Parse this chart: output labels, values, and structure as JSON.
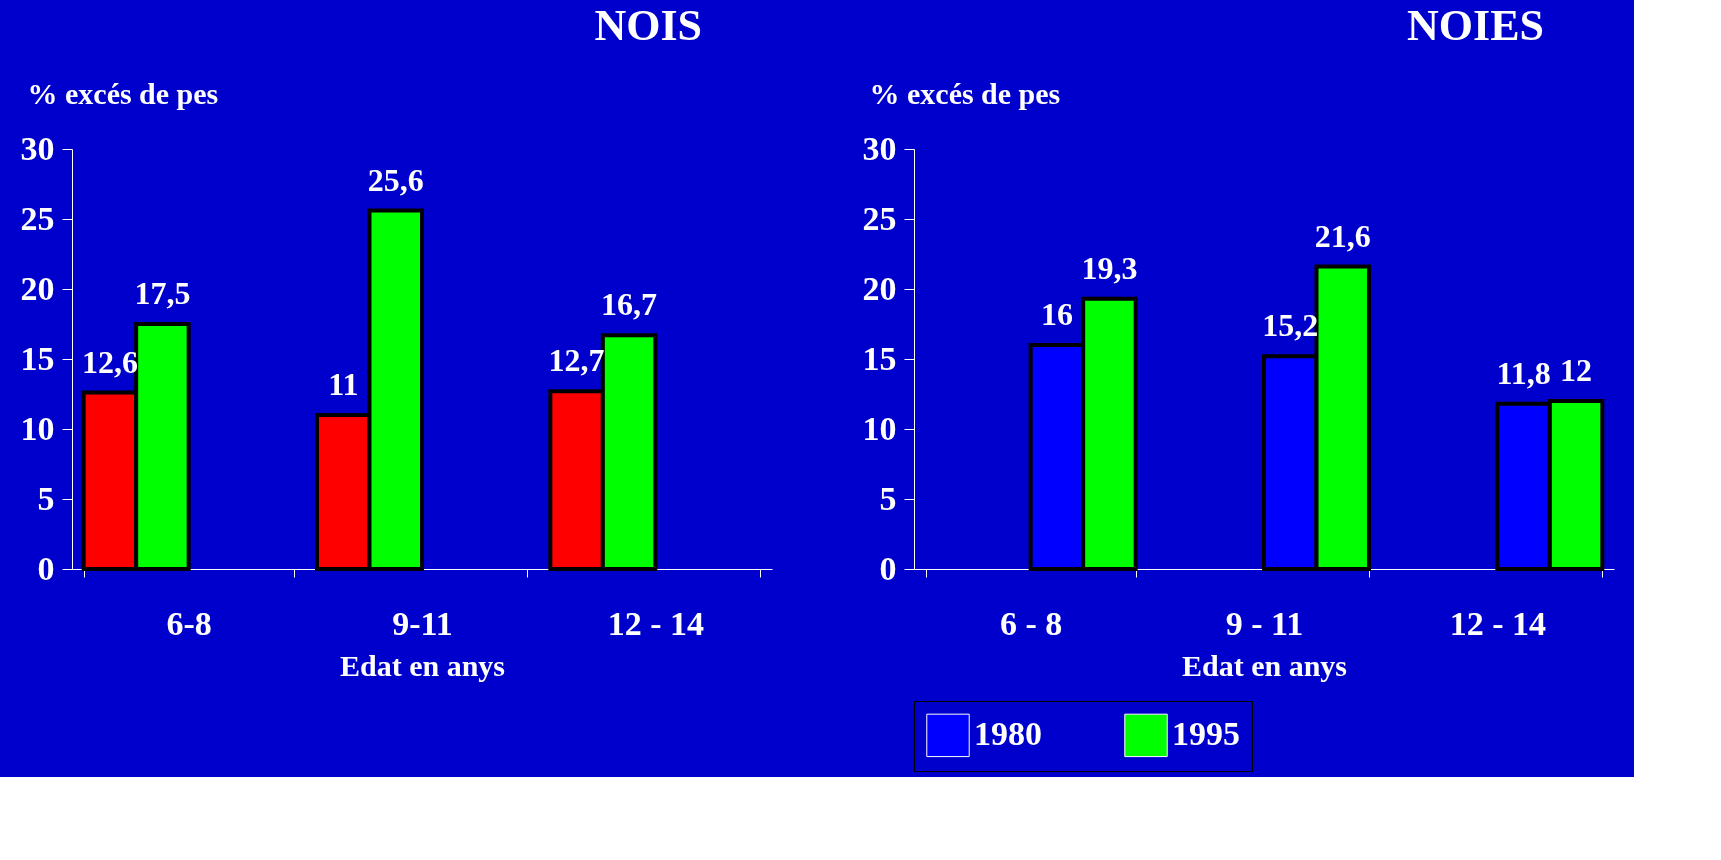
{
  "chart_data": [
    {
      "type": "bar",
      "title": "NOIS",
      "xlabel": "Edat en anys",
      "ylabel": "% excés de pes",
      "categories": [
        "6-8",
        "9-11",
        "12 - 14"
      ],
      "series": [
        {
          "color": "#ff0000",
          "values": [
            12.6,
            11,
            12.7
          ],
          "value_labels": [
            "12,6",
            "11",
            "12,7"
          ]
        },
        {
          "color": "#00ff00",
          "values": [
            17.5,
            25.6,
            16.7
          ],
          "value_labels": [
            "17,5",
            "25,6",
            "16,7"
          ]
        }
      ],
      "ylim": [
        0,
        30
      ],
      "yticks": [
        0,
        5,
        10,
        15,
        20,
        25,
        30
      ],
      "grid": false,
      "legend": false
    },
    {
      "type": "bar",
      "title": "NOIES",
      "xlabel": "Edat en anys",
      "ylabel": "% excés de pes",
      "categories": [
        "6 - 8",
        "9 - 11",
        "12 - 14"
      ],
      "series": [
        {
          "name": "1980",
          "color": "#0000ff",
          "values": [
            16,
            15.2,
            11.8
          ],
          "value_labels": [
            "16",
            "15,2",
            "11,8"
          ]
        },
        {
          "name": "1995",
          "color": "#00ff00",
          "values": [
            19.3,
            21.6,
            12
          ],
          "value_labels": [
            "19,3",
            "21,6",
            "12"
          ]
        }
      ],
      "ylim": [
        0,
        30
      ],
      "yticks": [
        0,
        5,
        10,
        15,
        20,
        25,
        30
      ],
      "grid": false,
      "legend": "bottom"
    }
  ]
}
